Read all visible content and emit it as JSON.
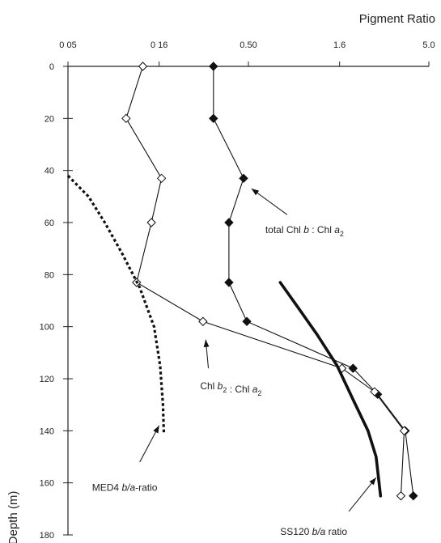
{
  "chart_data": {
    "type": "line",
    "title": "",
    "xlabel": "Pigment Ratio",
    "ylabel": "Depth (m)",
    "x_scale": "log",
    "xlim": [
      0.05,
      5.0
    ],
    "ylim": [
      0,
      180
    ],
    "x_ticks": [
      0.05,
      0.16,
      0.5,
      1.6,
      5.0
    ],
    "x_tick_labels": [
      "0 05",
      "0 16",
      "0.50",
      "1.6",
      "5.0"
    ],
    "y_ticks": [
      0,
      20,
      40,
      60,
      80,
      100,
      120,
      140,
      160,
      180
    ],
    "y_tick_labels": [
      "0",
      "20",
      "40",
      "60",
      "80",
      "100",
      "120",
      "140",
      "160",
      "180"
    ],
    "series": [
      {
        "label_parts": [
          "total Chl ",
          "b",
          " : Chl ",
          "a",
          "2"
        ],
        "marker": "filled-diamond",
        "style": "solid",
        "points": [
          {
            "x": 0.32,
            "y": 0
          },
          {
            "x": 0.32,
            "y": 20
          },
          {
            "x": 0.47,
            "y": 43
          },
          {
            "x": 0.39,
            "y": 60
          },
          {
            "x": 0.39,
            "y": 83
          },
          {
            "x": 0.49,
            "y": 98
          },
          {
            "x": 1.9,
            "y": 116
          },
          {
            "x": 2.6,
            "y": 126
          },
          {
            "x": 3.7,
            "y": 140
          },
          {
            "x": 4.1,
            "y": 165
          }
        ]
      },
      {
        "label_parts": [
          "Chl ",
          "b",
          "2",
          " : Chl ",
          "a",
          "2"
        ],
        "marker": "open-diamond",
        "style": "solid",
        "points": [
          {
            "x": 0.13,
            "y": 0
          },
          {
            "x": 0.105,
            "y": 20
          },
          {
            "x": 0.165,
            "y": 43
          },
          {
            "x": 0.145,
            "y": 60
          },
          {
            "x": 0.12,
            "y": 83
          },
          {
            "x": 0.28,
            "y": 98
          },
          {
            "x": 1.65,
            "y": 116
          },
          {
            "x": 2.5,
            "y": 125
          },
          {
            "x": 3.65,
            "y": 140
          },
          {
            "x": 3.5,
            "y": 165
          }
        ]
      },
      {
        "label_parts": [
          "MED4 ",
          "b/a",
          "-ratio"
        ],
        "marker": "none",
        "style": "dotted",
        "points": [
          {
            "x": 0.05,
            "y": 42
          },
          {
            "x": 0.065,
            "y": 50
          },
          {
            "x": 0.08,
            "y": 60
          },
          {
            "x": 0.1,
            "y": 72
          },
          {
            "x": 0.125,
            "y": 85
          },
          {
            "x": 0.15,
            "y": 100
          },
          {
            "x": 0.162,
            "y": 115
          },
          {
            "x": 0.168,
            "y": 130
          },
          {
            "x": 0.17,
            "y": 141
          }
        ]
      },
      {
        "label_parts": [
          "SS120 ",
          "b/a",
          " ratio"
        ],
        "marker": "none",
        "style": "thick",
        "points": [
          {
            "x": 0.75,
            "y": 83
          },
          {
            "x": 0.95,
            "y": 93
          },
          {
            "x": 1.2,
            "y": 103
          },
          {
            "x": 1.55,
            "y": 115
          },
          {
            "x": 1.9,
            "y": 128
          },
          {
            "x": 2.3,
            "y": 140
          },
          {
            "x": 2.55,
            "y": 150
          },
          {
            "x": 2.7,
            "y": 165
          }
        ]
      }
    ],
    "annotations": [
      {
        "series": 0,
        "text_at": {
          "x": 0.62,
          "y": 64
        },
        "arrow_from": {
          "x": 0.82,
          "y": 57
        },
        "arrow_to": {
          "x": 0.52,
          "y": 47
        }
      },
      {
        "series": 1,
        "text_at": {
          "x": 0.27,
          "y": 124
        },
        "arrow_from": {
          "x": 0.3,
          "y": 116
        },
        "arrow_to": {
          "x": 0.29,
          "y": 105
        }
      },
      {
        "series": 2,
        "text_at": {
          "x": 0.068,
          "y": 163
        },
        "arrow_from": {
          "x": 0.125,
          "y": 152
        },
        "arrow_to": {
          "x": 0.16,
          "y": 138
        }
      },
      {
        "series": 3,
        "text_at": {
          "x": 0.75,
          "y": 180
        },
        "arrow_from": {
          "x": 1.8,
          "y": 171
        },
        "arrow_to": {
          "x": 2.55,
          "y": 158
        }
      }
    ]
  }
}
